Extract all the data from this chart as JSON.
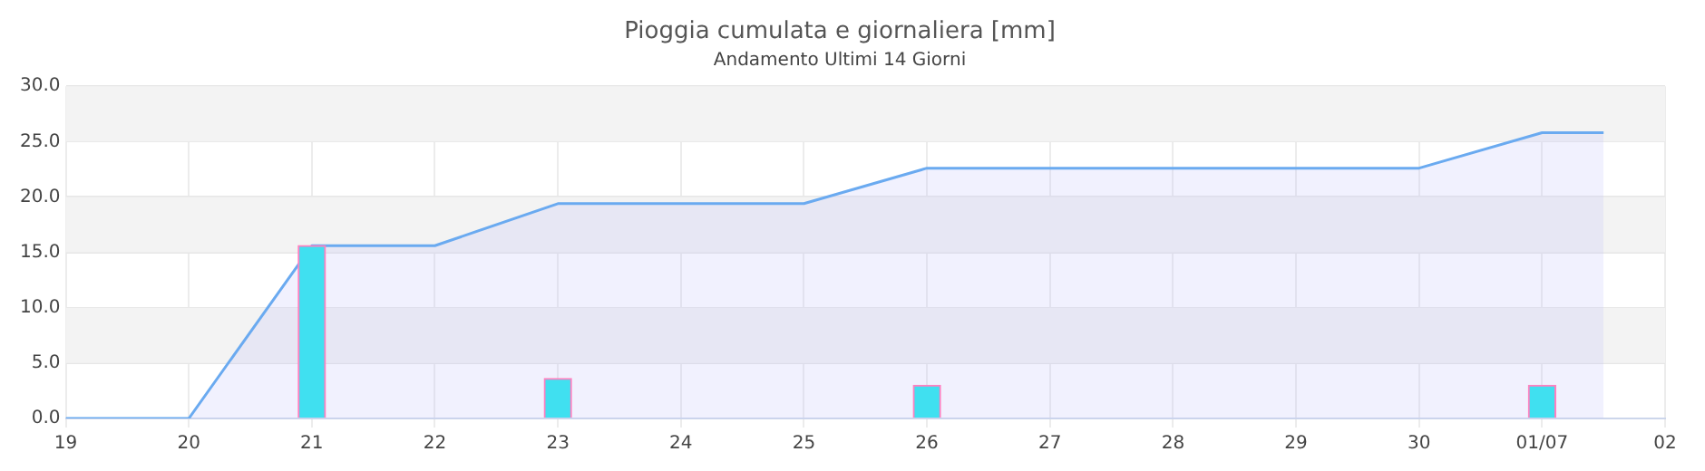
{
  "chart_data": {
    "type": "area",
    "title": "Pioggia cumulata e giornaliera [mm]",
    "subtitle": "Andamento Ultimi 14 Giorni",
    "series": [
      {
        "color": "#6aaaf0",
        "x": [
          "--06-19",
          "--06-20",
          "--06-21",
          "--06-22",
          "--06-23",
          "--06-25",
          "--06-26",
          "--06-30",
          "--07-01",
          "--07-01T12:00"
        ],
        "values": [
          0,
          0,
          15.6,
          15.6,
          19.4,
          19.4,
          22.6,
          22.6,
          25.8,
          25.8
        ]
      },
      {
        "type": "bar",
        "color": "#40e0f0",
        "x": [
          "--06-21",
          "--06-23",
          "--06-26",
          "--07-01"
        ],
        "values": [
          15.6,
          3.6,
          3.0,
          3.0
        ]
      }
    ],
    "xlim": [
      "--06-19",
      "--07-02"
    ],
    "xticks": [
      {
        "value": "--06-19",
        "label": "19"
      },
      {
        "value": "--06-20",
        "label": "20"
      },
      {
        "value": "--06-21",
        "label": "21"
      },
      {
        "value": "--06-22",
        "label": "22"
      },
      {
        "value": "--06-23",
        "label": "23"
      },
      {
        "value": "--06-24",
        "label": "24"
      },
      {
        "value": "--06-25",
        "label": "25"
      },
      {
        "value": "--06-26",
        "label": "26"
      },
      {
        "value": "--06-27",
        "label": "27"
      },
      {
        "value": "--06-28",
        "label": "28"
      },
      {
        "value": "--06-29",
        "label": "29"
      },
      {
        "value": "--06-30",
        "label": "30"
      },
      {
        "value": "--07-01",
        "label": "01/07"
      },
      {
        "value": "--07-02",
        "label": "02"
      }
    ],
    "ylim": [
      0,
      30
    ],
    "yticks": [
      {
        "value": 0,
        "label": "0.0"
      },
      {
        "value": 5,
        "label": "5.0"
      },
      {
        "value": 10,
        "label": "10.0"
      },
      {
        "value": 15,
        "label": "15.0"
      },
      {
        "value": 20,
        "label": "20.0"
      },
      {
        "value": 25,
        "label": "25.0"
      },
      {
        "value": 30,
        "label": "30.0"
      }
    ],
    "bands": [
      {
        "axis": "y",
        "from": 5,
        "to": 10,
        "color": "#f3f3f3"
      },
      {
        "axis": "y",
        "from": 15,
        "to": 20,
        "color": "#f3f3f3"
      },
      {
        "axis": "y",
        "from": 25,
        "to": 30,
        "color": "#f3f3f3"
      }
    ],
    "grid": true,
    "legend": false,
    "marker": "none",
    "line_style": "solid"
  }
}
